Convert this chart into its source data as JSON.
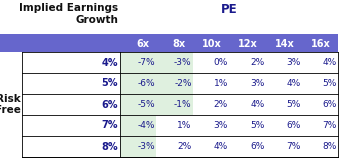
{
  "title_left": "Implied Earnings\nGrowth",
  "title_right": "PE",
  "col_headers": [
    "6x",
    "8x",
    "10x",
    "12x",
    "14x",
    "16x"
  ],
  "row_headers": [
    "4%",
    "5%",
    "6%",
    "7%",
    "8%"
  ],
  "table_data": [
    [
      "-7%",
      "-3%",
      "0%",
      "2%",
      "3%",
      "4%"
    ],
    [
      "-6%",
      "-2%",
      "1%",
      "3%",
      "4%",
      "5%"
    ],
    [
      "-5%",
      "-1%",
      "2%",
      "4%",
      "5%",
      "6%"
    ],
    [
      "-4%",
      "1%",
      "3%",
      "5%",
      "6%",
      "7%"
    ],
    [
      "-3%",
      "2%",
      "4%",
      "6%",
      "7%",
      "8%"
    ]
  ],
  "cell_colors": [
    [
      "#dff0df",
      "#dff0df",
      "#ffffff",
      "#ffffff",
      "#ffffff",
      "#ffffff"
    ],
    [
      "#dff0df",
      "#dff0df",
      "#ffffff",
      "#ffffff",
      "#ffffff",
      "#ffffff"
    ],
    [
      "#dff0df",
      "#dff0df",
      "#ffffff",
      "#ffffff",
      "#ffffff",
      "#ffffff"
    ],
    [
      "#dff0df",
      "#ffffff",
      "#ffffff",
      "#ffffff",
      "#ffffff",
      "#ffffff"
    ],
    [
      "#dff0df",
      "#ffffff",
      "#ffffff",
      "#ffffff",
      "#ffffff",
      "#ffffff"
    ]
  ],
  "header_bar_color": "#6666cc",
  "text_color_dark": "#1a1a8c",
  "text_color_white": "#ffffff",
  "left_label": "Risk\nFree",
  "background": "#ffffff",
  "figure_width": 3.4,
  "figure_height": 1.59,
  "dpi": 100
}
